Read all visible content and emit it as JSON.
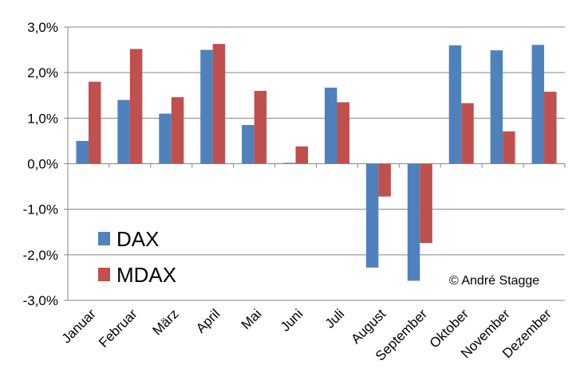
{
  "chart_data": {
    "type": "bar",
    "categories": [
      "Januar",
      "Februar",
      "März",
      "April",
      "Mai",
      "Juni",
      "Juli",
      "August",
      "September",
      "Oktober",
      "November",
      "Dezember"
    ],
    "series": [
      {
        "name": "DAX",
        "color": "#4f81bd",
        "values": [
          0.5,
          1.4,
          1.1,
          2.5,
          0.85,
          0.02,
          1.67,
          -2.28,
          -2.57,
          2.6,
          2.49,
          2.61
        ]
      },
      {
        "name": "MDAX",
        "color": "#c0504d",
        "values": [
          1.8,
          2.52,
          1.46,
          2.63,
          1.6,
          0.38,
          1.35,
          -0.72,
          -1.74,
          1.33,
          0.71,
          1.58
        ]
      }
    ],
    "ylim": [
      -3.0,
      3.0
    ],
    "yticks": [
      3.0,
      2.0,
      1.0,
      0.0,
      -1.0,
      -2.0,
      -3.0
    ],
    "ytick_labels": [
      "3,0%",
      "2,0%",
      "1,0%",
      "0,0%",
      "-1,0%",
      "-2,0%",
      "-3,0%"
    ],
    "grid": true,
    "legend_position": "bottom-left",
    "annotation": "© André Stagge"
  }
}
